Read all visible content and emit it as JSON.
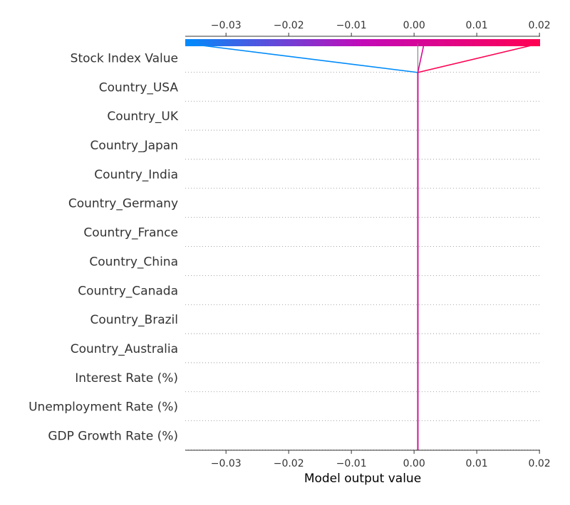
{
  "chart_data": {
    "type": "line",
    "title": "",
    "xlabel": "Model output value",
    "ylabel": "",
    "xlim": [
      -0.0365,
      0.0201
    ],
    "x_ticks": [
      -0.03,
      -0.02,
      -0.01,
      0.0,
      0.01,
      0.02
    ],
    "x_tick_labels": [
      "−0.03",
      "−0.02",
      "−0.01",
      "0.00",
      "0.01",
      "0.02"
    ],
    "base_value": 0.0006,
    "features": [
      "Stock Index Value",
      "Country_USA",
      "Country_UK",
      "Country_Japan",
      "Country_India",
      "Country_Germany",
      "Country_France",
      "Country_China",
      "Country_Canada",
      "Country_Brazil",
      "Country_Australia",
      "Interest Rate (%)",
      "Unemployment Rate (%)",
      "GDP Growth Rate (%)"
    ],
    "series": [
      {
        "values": [
          -0.0365,
          0.0006,
          0.0006,
          0.0006,
          0.0006,
          0.0006,
          0.0006,
          0.0006,
          0.0006,
          0.0006,
          0.0006,
          0.0006,
          0.0006,
          0.0006,
          0.0006
        ]
      },
      {
        "values": [
          0.0201,
          0.0006,
          0.0006,
          0.0006,
          0.0006,
          0.0006,
          0.0006,
          0.0006,
          0.0006,
          0.0006,
          0.0006,
          0.0006,
          0.0006,
          0.0006,
          0.0006
        ]
      },
      {
        "values": [
          0.0016,
          0.0006,
          0.0006,
          0.0006,
          0.0006,
          0.0006,
          0.0006,
          0.0006,
          0.0006,
          0.0006,
          0.0006,
          0.0006,
          0.0006,
          0.0006,
          0.0006
        ]
      }
    ],
    "colormap": [
      "#008bfb",
      "#c30ab8",
      "#ff0052"
    ],
    "grid": "dotted-rows",
    "legend": "none"
  }
}
